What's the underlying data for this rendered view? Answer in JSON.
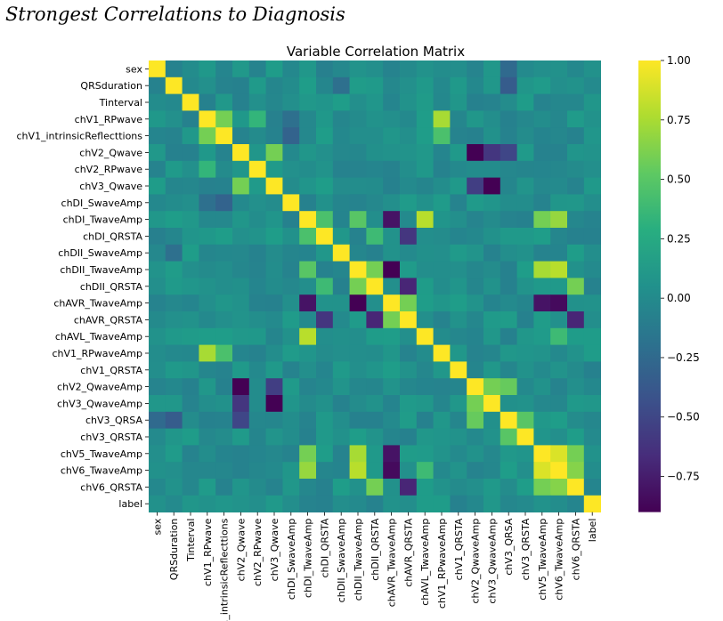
{
  "page": {
    "heading": "Strongest Correlations to Diagnosis"
  },
  "chart_data": {
    "type": "heatmap",
    "title": "Variable Correlation Matrix",
    "colormap": "viridis",
    "colors": {
      "low": "#440154",
      "mid": "#21918c",
      "high": "#fde725"
    },
    "variables": [
      "sex",
      "QRSduration",
      "Tinterval",
      "chV1_RPwave",
      "chV1_intrinsicReflecttions",
      "chV2_Qwave",
      "chV2_RPwave",
      "chV3_Qwave",
      "chDI_SwaveAmp",
      "chDI_TwaveAmp",
      "chDI_QRSTA",
      "chDII_SwaveAmp",
      "chDII_TwaveAmp",
      "chDII_QRSTA",
      "chAVR_TwaveAmp",
      "chAVR_QRSTA",
      "chAVL_TwaveAmp",
      "chV1_RPwaveAmp",
      "chV1_QRSTA",
      "chV2_QwaveAmp",
      "chV3_QwaveAmp",
      "chV3_QRSA",
      "chV3_QRSTA",
      "chV5_TwaveAmp",
      "chV6_TwaveAmp",
      "chV6_QRSTA",
      "label"
    ],
    "strong_pairs": [
      {
        "a": "chV1_RPwave",
        "b": "chV1_intrinsicReflecttions",
        "r": 0.6
      },
      {
        "a": "chV1_RPwave",
        "b": "chV1_RPwaveAmp",
        "r": 0.75
      },
      {
        "a": "chV1_intrinsicReflecttions",
        "b": "chV1_RPwaveAmp",
        "r": 0.45
      },
      {
        "a": "chV2_Qwave",
        "b": "chV3_Qwave",
        "r": 0.6
      },
      {
        "a": "chV2_RPwave",
        "b": "chV1_RPwave",
        "r": 0.35
      },
      {
        "a": "chV2_Qwave",
        "b": "chV2_QwaveAmp",
        "r": -0.9
      },
      {
        "a": "chV2_Qwave",
        "b": "chV3_QwaveAmp",
        "r": -0.6
      },
      {
        "a": "chV2_Qwave",
        "b": "chV3_QRSA",
        "r": -0.5
      },
      {
        "a": "chV3_Qwave",
        "b": "chV3_QwaveAmp",
        "r": -0.95
      },
      {
        "a": "chV3_Qwave",
        "b": "chV2_QwaveAmp",
        "r": -0.55
      },
      {
        "a": "chDI_TwaveAmp",
        "b": "chDI_QRSTA",
        "r": 0.45
      },
      {
        "a": "chDI_TwaveAmp",
        "b": "chDII_TwaveAmp",
        "r": 0.5
      },
      {
        "a": "chDI_TwaveAmp",
        "b": "chAVR_TwaveAmp",
        "r": -0.8
      },
      {
        "a": "chDI_TwaveAmp",
        "b": "chAVL_TwaveAmp",
        "r": 0.8
      },
      {
        "a": "chDI_TwaveAmp",
        "b": "chV5_TwaveAmp",
        "r": 0.6
      },
      {
        "a": "chDI_TwaveAmp",
        "b": "chV6_TwaveAmp",
        "r": 0.7
      },
      {
        "a": "chDI_QRSTA",
        "b": "chAVR_QRSTA",
        "r": -0.6
      },
      {
        "a": "chDI_QRSTA",
        "b": "chDII_QRSTA",
        "r": 0.4
      },
      {
        "a": "chDII_TwaveAmp",
        "b": "chDII_QRSTA",
        "r": 0.6
      },
      {
        "a": "chDII_TwaveAmp",
        "b": "chAVR_TwaveAmp",
        "r": -0.9
      },
      {
        "a": "chDII_TwaveAmp",
        "b": "chV5_TwaveAmp",
        "r": 0.75
      },
      {
        "a": "chDII_TwaveAmp",
        "b": "chV6_TwaveAmp",
        "r": 0.8
      },
      {
        "a": "chDII_QRSTA",
        "b": "chAVR_QRSTA",
        "r": -0.7
      },
      {
        "a": "chDII_QRSTA",
        "b": "chV6_QRSTA",
        "r": 0.6
      },
      {
        "a": "chAVR_TwaveAmp",
        "b": "chAVR_QRSTA",
        "r": 0.6
      },
      {
        "a": "chAVR_TwaveAmp",
        "b": "chV5_TwaveAmp",
        "r": -0.8
      },
      {
        "a": "chAVR_TwaveAmp",
        "b": "chV6_TwaveAmp",
        "r": -0.85
      },
      {
        "a": "chAVR_QRSTA",
        "b": "chV6_QRSTA",
        "r": -0.7
      },
      {
        "a": "chAVL_TwaveAmp",
        "b": "chV6_TwaveAmp",
        "r": 0.4
      },
      {
        "a": "chV2_QwaveAmp",
        "b": "chV3_QwaveAmp",
        "r": 0.6
      },
      {
        "a": "chV2_QwaveAmp",
        "b": "chV3_QRSA",
        "r": 0.55
      },
      {
        "a": "chV3_QRSA",
        "b": "chV3_QRSTA",
        "r": 0.5
      },
      {
        "a": "chV5_TwaveAmp",
        "b": "chV6_TwaveAmp",
        "r": 0.9
      },
      {
        "a": "chV5_TwaveAmp",
        "b": "chV6_QRSTA",
        "r": 0.6
      },
      {
        "a": "chV6_TwaveAmp",
        "b": "chV6_QRSTA",
        "r": 0.65
      },
      {
        "a": "sex",
        "b": "chV3_QRSA",
        "r": -0.25
      },
      {
        "a": "QRSduration",
        "b": "chV3_QRSA",
        "r": -0.35
      },
      {
        "a": "chDII_SwaveAmp",
        "b": "QRSduration",
        "r": -0.2
      },
      {
        "a": "chV1_RPwave",
        "b": "chDI_SwaveAmp",
        "r": -0.2
      },
      {
        "a": "chV1_intrinsicReflecttions",
        "b": "chDI_SwaveAmp",
        "r": -0.3
      }
    ],
    "colorbar": {
      "min": -0.9,
      "max": 1.0,
      "ticks": [
        -0.75,
        -0.5,
        -0.25,
        0.0,
        0.25,
        0.5,
        0.75,
        1.0
      ],
      "tick_labels": [
        "−0.75",
        "−0.50",
        "−0.25",
        "0.00",
        "0.25",
        "0.50",
        "0.75",
        "1.00"
      ]
    }
  }
}
